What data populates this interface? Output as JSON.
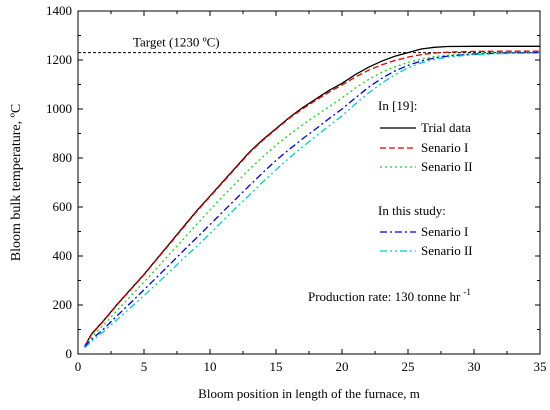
{
  "chart_data": {
    "type": "line",
    "xlabel": "Bloom position in length of the furnace, m",
    "ylabel": "Bloom bulk temperature, ºC",
    "xlim": [
      0,
      35
    ],
    "ylim": [
      0,
      1400
    ],
    "xticks": [
      0,
      5,
      10,
      15,
      20,
      25,
      30,
      35
    ],
    "yticks": [
      0,
      200,
      400,
      600,
      800,
      1000,
      1200,
      1400
    ],
    "grid": false,
    "legend_group_1_title": "In [19]:",
    "legend_group_2_title": "In this study:",
    "target_line": {
      "value": 1230,
      "label": "Target (1230 ºC)"
    },
    "annotation": {
      "main": "Production rate: 130 tonne hr",
      "superscript": "-1"
    },
    "series": [
      {
        "name": "Trial data",
        "group": 1,
        "color": "#000000",
        "dash": "",
        "x": [
          0.5,
          1,
          2,
          3,
          4,
          5,
          6,
          7,
          8,
          9,
          10,
          11,
          12,
          13,
          14,
          15,
          16,
          17,
          18,
          19,
          20,
          21,
          22,
          23,
          24,
          25,
          26,
          27,
          28,
          30,
          32,
          35
        ],
        "y": [
          30,
          80,
          140,
          205,
          265,
          325,
          390,
          455,
          520,
          585,
          645,
          705,
          765,
          825,
          875,
          920,
          965,
          1005,
          1040,
          1075,
          1105,
          1140,
          1170,
          1195,
          1215,
          1230,
          1245,
          1252,
          1255,
          1256,
          1256,
          1256
        ]
      },
      {
        "name": "Senario I",
        "group": 1,
        "color": "#dd0000",
        "dash": "6,3",
        "x": [
          0.5,
          1,
          2,
          3,
          4,
          5,
          6,
          7,
          8,
          9,
          10,
          11,
          12,
          13,
          14,
          15,
          16,
          17,
          18,
          19,
          20,
          21,
          22,
          23,
          24,
          25,
          26,
          27,
          28,
          30,
          32,
          35
        ],
        "y": [
          30,
          78,
          138,
          203,
          263,
          323,
          388,
          452,
          517,
          582,
          642,
          702,
          762,
          822,
          872,
          917,
          962,
          1000,
          1035,
          1068,
          1098,
          1130,
          1158,
          1180,
          1198,
          1212,
          1222,
          1228,
          1232,
          1235,
          1236,
          1236
        ]
      },
      {
        "name": "Senario II",
        "group": 1,
        "color": "#22cc22",
        "dash": "2,3",
        "x": [
          0.5,
          1,
          2,
          3,
          4,
          5,
          6,
          7,
          8,
          9,
          10,
          11,
          12,
          13,
          14,
          15,
          16,
          17,
          18,
          19,
          20,
          21,
          22,
          23,
          24,
          25,
          26,
          27,
          28,
          30,
          32,
          35
        ],
        "y": [
          30,
          68,
          122,
          180,
          237,
          294,
          352,
          412,
          470,
          530,
          588,
          645,
          700,
          755,
          805,
          852,
          895,
          935,
          972,
          1008,
          1045,
          1085,
          1120,
          1150,
          1172,
          1190,
          1204,
          1214,
          1220,
          1227,
          1230,
          1232
        ]
      },
      {
        "name": "Senario I",
        "group": 2,
        "color": "#0000cc",
        "dash": "7,3,2,3",
        "x": [
          0.5,
          1,
          2,
          3,
          4,
          5,
          6,
          7,
          8,
          9,
          10,
          11,
          12,
          13,
          14,
          15,
          16,
          17,
          18,
          19,
          20,
          21,
          22,
          23,
          24,
          25,
          26,
          27,
          28,
          30,
          32,
          35
        ],
        "y": [
          30,
          58,
          105,
          158,
          210,
          262,
          315,
          368,
          422,
          475,
          528,
          582,
          635,
          688,
          740,
          790,
          835,
          878,
          918,
          960,
          1000,
          1045,
          1088,
          1125,
          1155,
          1178,
          1196,
          1208,
          1216,
          1224,
          1228,
          1230
        ]
      },
      {
        "name": "Senario II",
        "group": 2,
        "color": "#00cccc",
        "dash": "7,3,2,3,2,3",
        "x": [
          0.5,
          1,
          2,
          3,
          4,
          5,
          6,
          7,
          8,
          9,
          10,
          11,
          12,
          13,
          14,
          15,
          16,
          17,
          18,
          19,
          20,
          21,
          22,
          23,
          24,
          25,
          26,
          27,
          28,
          30,
          32,
          35
        ],
        "y": [
          25,
          50,
          95,
          142,
          190,
          238,
          288,
          338,
          390,
          440,
          492,
          545,
          598,
          650,
          702,
          752,
          800,
          845,
          888,
          930,
          972,
          1020,
          1065,
          1105,
          1140,
          1168,
          1188,
          1202,
          1212,
          1222,
          1226,
          1228
        ]
      }
    ]
  }
}
